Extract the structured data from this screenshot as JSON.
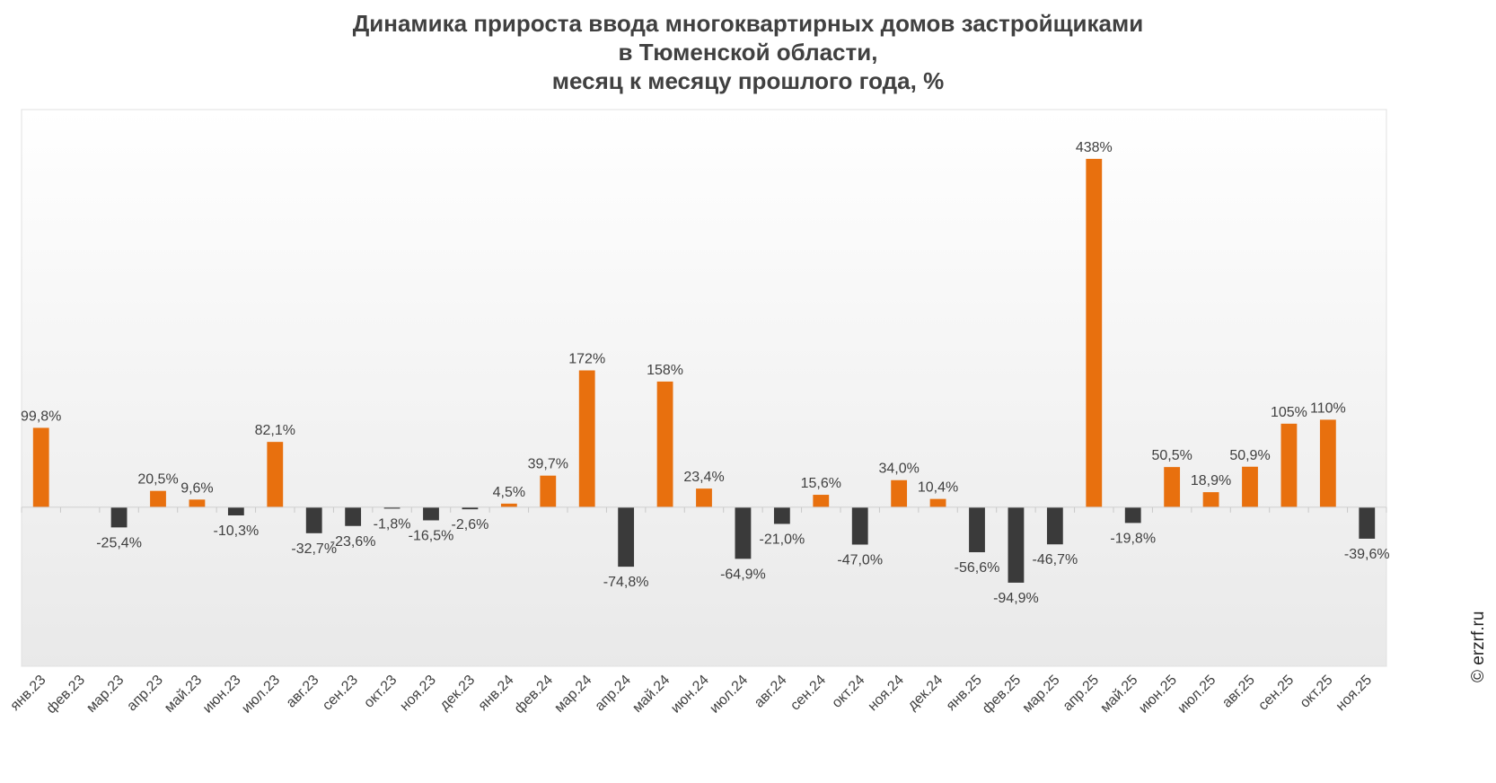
{
  "chart_data": {
    "type": "bar",
    "title": [
      "Динамика прироста ввода многоквартирных домов застройщиками",
      "в Тюменской области,",
      "месяц к месяцу прошлого года, %"
    ],
    "categories": [
      "янв.23",
      "фев.23",
      "мар.23",
      "апр.23",
      "май.23",
      "июн.23",
      "июл.23",
      "авг.23",
      "сен.23",
      "окт.23",
      "ноя.23",
      "дек.23",
      "янв.24",
      "фев.24",
      "мар.24",
      "апр.24",
      "май.24",
      "июн.24",
      "июл.24",
      "авг.24",
      "сен.24",
      "окт.24",
      "ноя.24",
      "дек.24",
      "янв.25",
      "фев.25",
      "мар.25",
      "апр.25",
      "май.25",
      "июн.25",
      "июл.25",
      "авг.25",
      "сен.25",
      "окт.25",
      "ноя.25"
    ],
    "values": [
      99.8,
      null,
      -25.4,
      20.5,
      9.6,
      -10.3,
      82.1,
      -32.7,
      -23.6,
      -1.8,
      -16.5,
      -2.6,
      4.5,
      39.7,
      172,
      -74.8,
      158,
      23.4,
      -64.9,
      -21.0,
      15.6,
      -47.0,
      34.0,
      10.4,
      -56.6,
      -94.9,
      -46.7,
      438,
      -19.8,
      50.5,
      18.9,
      50.9,
      105,
      110,
      -39.6
    ],
    "labels": [
      "99,8%",
      "",
      "-25,4%",
      "20,5%",
      "9,6%",
      "-10,3%",
      "82,1%",
      "-32,7%",
      "-23,6%",
      "-1,8%",
      "-16,5%",
      "-2,6%",
      "4,5%",
      "39,7%",
      "172%",
      "-74,8%",
      "158%",
      "23,4%",
      "-64,9%",
      "-21,0%",
      "15,6%",
      "-47,0%",
      "34,0%",
      "10,4%",
      "-56,6%",
      "-94,9%",
      "-46,7%",
      "438%",
      "-19,8%",
      "50,5%",
      "18,9%",
      "50,9%",
      "105%",
      "110%",
      "-39,6%"
    ],
    "ylim": [
      -200,
      500
    ],
    "grid": false,
    "colors": {
      "positive": "#E8700E",
      "negative": "#3A3A3A"
    }
  },
  "watermark": "© erzrf.ru"
}
